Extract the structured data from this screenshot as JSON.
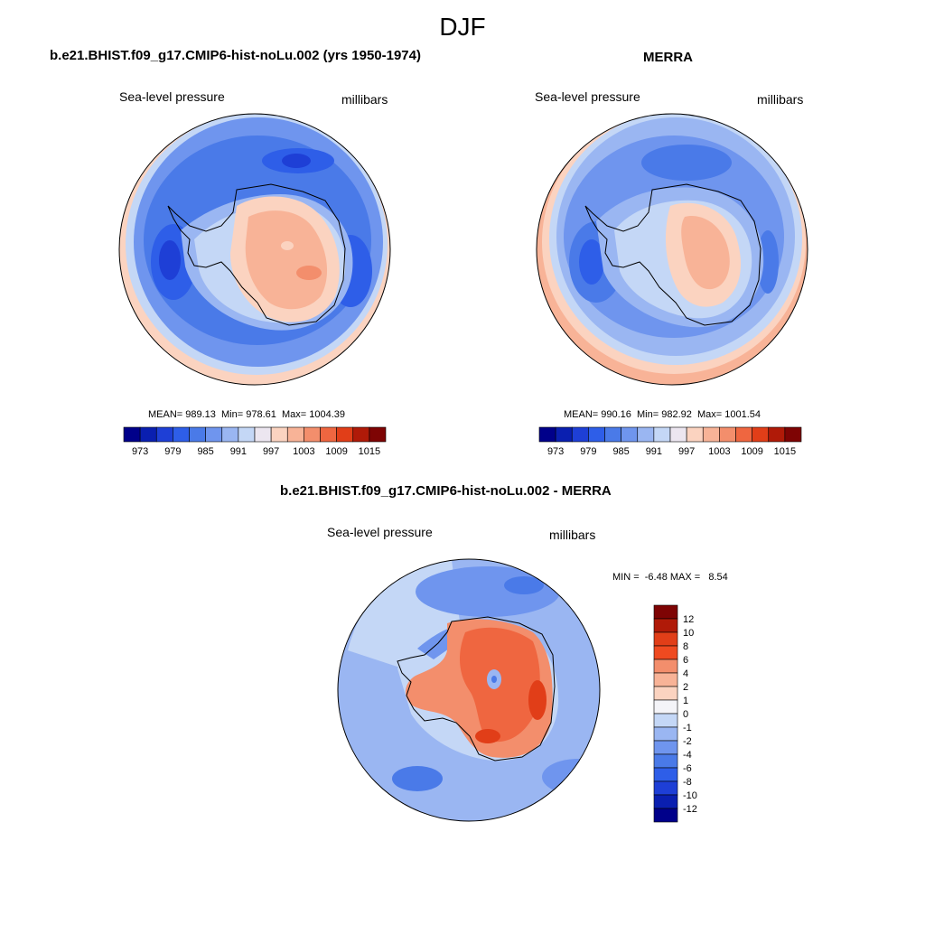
{
  "page_title": "DJF",
  "chart_data": [
    {
      "type": "map",
      "panel": "model",
      "title": "b.e21.BHIST.f09_g17.CMIP6-hist-noLu.002 (yrs 1950-1974)",
      "variable": "Sea-level pressure",
      "units": "millibars",
      "stats_text": "MEAN= 989.13  Min= 978.61  Max= 1004.39",
      "mean": 989.13,
      "min": 978.61,
      "max": 1004.39,
      "colorbar_ticks": [
        "973",
        "979",
        "985",
        "991",
        "997",
        "1003",
        "1009",
        "1015"
      ]
    },
    {
      "type": "map",
      "panel": "obs",
      "title": "MERRA",
      "variable": "Sea-level pressure",
      "units": "millibars",
      "stats_text": "MEAN= 990.16  Min= 982.92  Max= 1001.54",
      "mean": 990.16,
      "min": 982.92,
      "max": 1001.54,
      "colorbar_ticks": [
        "973",
        "979",
        "985",
        "991",
        "997",
        "1003",
        "1009",
        "1015"
      ]
    },
    {
      "type": "map",
      "panel": "difference",
      "title": "b.e21.BHIST.f09_g17.CMIP6-hist-noLu.002 - MERRA",
      "variable": "Sea-level pressure",
      "units": "millibars",
      "stats_text": "MIN =  -6.48 MAX =   8.54",
      "min": -6.48,
      "max": 8.54,
      "colorbar_ticks": [
        "12",
        "10",
        "8",
        "6",
        "4",
        "2",
        "1",
        "0",
        "-1",
        "-2",
        "-4",
        "-6",
        "-8",
        "-10",
        "-12"
      ]
    }
  ],
  "palette": {
    "seq": [
      "#00008a",
      "#0a1fb0",
      "#1e3fd6",
      "#2e5ee8",
      "#4a7ae8",
      "#6f95ee",
      "#9ab6f2",
      "#c4d7f6",
      "#ece6f0",
      "#fbd3c0",
      "#f8b397",
      "#f38e6c",
      "#ef6640",
      "#e13e18",
      "#b01a08",
      "#7e0404"
    ],
    "diff": [
      "#7e0404",
      "#b01a08",
      "#e13e18",
      "#ef4a20",
      "#f38e6c",
      "#f8b397",
      "#fbd3c0",
      "#f4f4f8",
      "#c4d7f6",
      "#9ab6f2",
      "#6f95ee",
      "#4a7ae8",
      "#2e5ee8",
      "#1e3fd6",
      "#0a1fb0",
      "#00008a"
    ]
  }
}
